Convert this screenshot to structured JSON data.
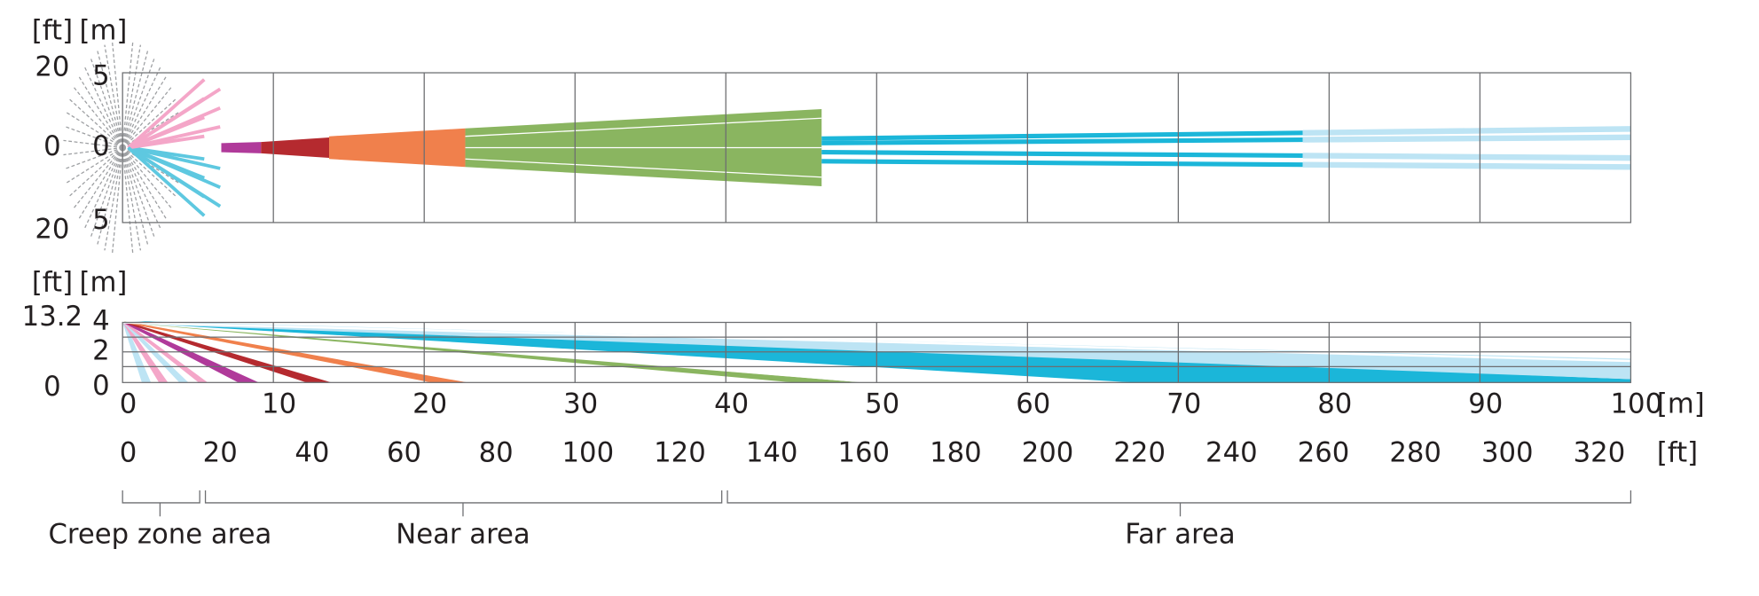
{
  "top_view": {
    "unit_ft": "[ft]",
    "unit_m": "[m]",
    "y_labels_ft": [
      "20",
      "0",
      "20"
    ],
    "y_labels_m": [
      "5",
      "0",
      "5"
    ]
  },
  "side_view": {
    "unit_ft": "[ft]",
    "unit_m": "[m]",
    "y_labels_ft": [
      "13.2",
      "0"
    ],
    "y_labels_m": [
      "4",
      "2",
      "0"
    ]
  },
  "x_axis": {
    "m_labels": [
      "0",
      "10",
      "20",
      "30",
      "40",
      "50",
      "60",
      "70",
      "80",
      "90",
      "100"
    ],
    "m_unit": "[m]",
    "ft_labels": [
      "0",
      "20",
      "40",
      "60",
      "80",
      "100",
      "120",
      "140",
      "160",
      "180",
      "200",
      "220",
      "240",
      "260",
      "280",
      "300",
      "320"
    ],
    "ft_unit": "[ft]"
  },
  "areas": [
    "Creep zone area",
    "Near area",
    "Far area"
  ]
}
